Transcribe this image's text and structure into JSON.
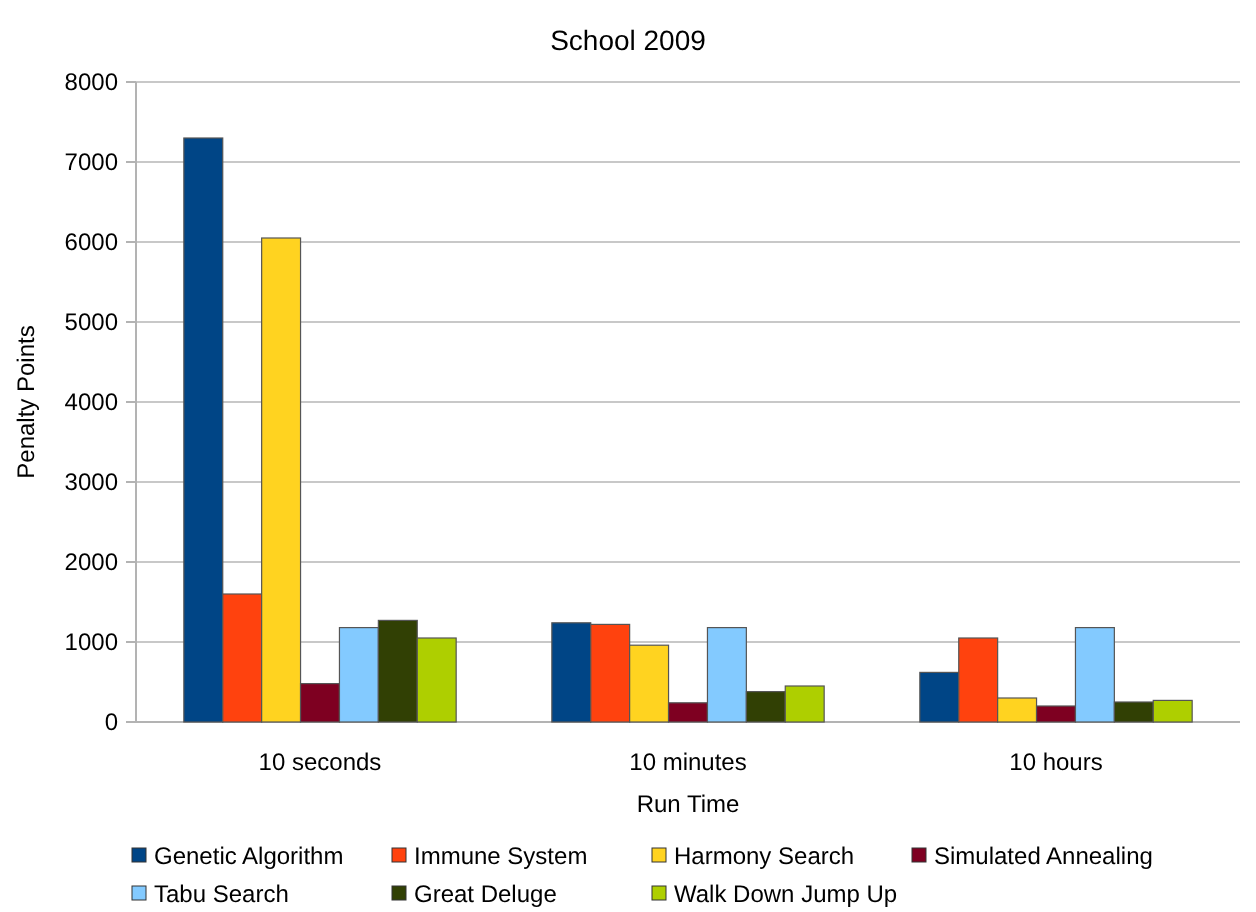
{
  "chart_data": {
    "type": "bar",
    "title": "School 2009",
    "xlabel": "Run Time",
    "ylabel": "Penalty Points",
    "categories": [
      "10 seconds",
      "10 minutes",
      "10 hours"
    ],
    "series": [
      {
        "name": "Genetic Algorithm",
        "color": "#004586",
        "values": [
          7300,
          1240,
          620
        ]
      },
      {
        "name": "Immune System",
        "color": "#ff420e",
        "values": [
          1600,
          1220,
          1050
        ]
      },
      {
        "name": "Harmony Search",
        "color": "#ffd320",
        "values": [
          6050,
          960,
          300
        ]
      },
      {
        "name": "Simulated Annealing",
        "color": "#7e0021",
        "values": [
          480,
          240,
          200
        ]
      },
      {
        "name": "Tabu Search",
        "color": "#83caff",
        "values": [
          1180,
          1180,
          1180
        ]
      },
      {
        "name": "Great Deluge",
        "color": "#314004",
        "values": [
          1270,
          380,
          250
        ]
      },
      {
        "name": "Walk Down Jump Up",
        "color": "#aecf00",
        "values": [
          1050,
          450,
          270
        ]
      }
    ],
    "ylim": [
      0,
      8000
    ],
    "yticks": [
      0,
      1000,
      2000,
      3000,
      4000,
      5000,
      6000,
      7000,
      8000
    ],
    "grid": "y",
    "legend": "bottom"
  }
}
